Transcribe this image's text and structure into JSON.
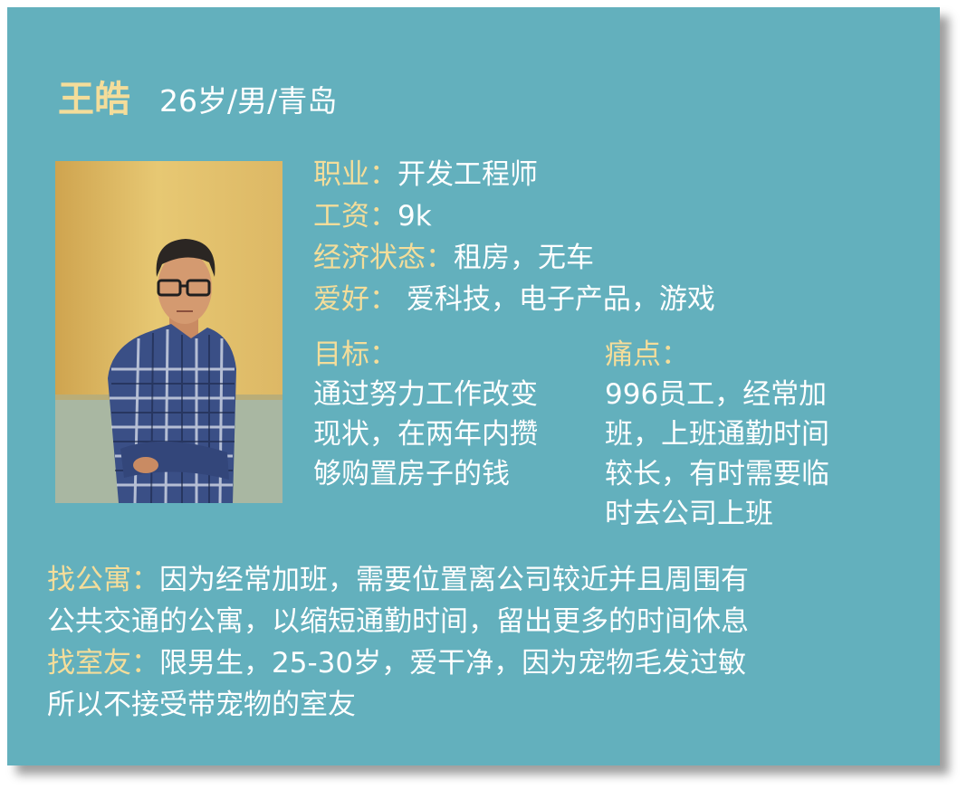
{
  "profile": {
    "name": "王皓",
    "meta": "26岁/男/青岛"
  },
  "info": [
    {
      "label": "职业：",
      "value": "开发工程师"
    },
    {
      "label": "工资：",
      "value": "9k"
    },
    {
      "label": "经济状态：",
      "value": "租房，无车"
    },
    {
      "label": "爱好：",
      "value": " 爱科技，电子产品，游戏"
    }
  ],
  "goal": {
    "label": "目标：",
    "lines": [
      "通过努力工作改变",
      "现状，在两年内攒",
      "够购置房子的钱"
    ]
  },
  "pain": {
    "label": "痛点：",
    "lines": [
      "996员工，经常加",
      "班，上班通勤时间",
      "较长，有时需要临",
      "时去公司上班"
    ]
  },
  "apartment": {
    "label": "找公寓：",
    "line1": "因为经常加班，需要位置离公司较近并且周围有",
    "line2": "公共交通的公寓，以缩短通勤时间，留出更多的时间休息"
  },
  "roommate": {
    "label": "找室友：",
    "line1": "限男生，25-30岁，爱干净，因为宠物毛发过敏",
    "line2": "所以不接受带宠物的室友"
  },
  "colors": {
    "card_background": "#63b0bd",
    "label_gold": "#f4dd9a",
    "text_white": "#ffffff"
  }
}
